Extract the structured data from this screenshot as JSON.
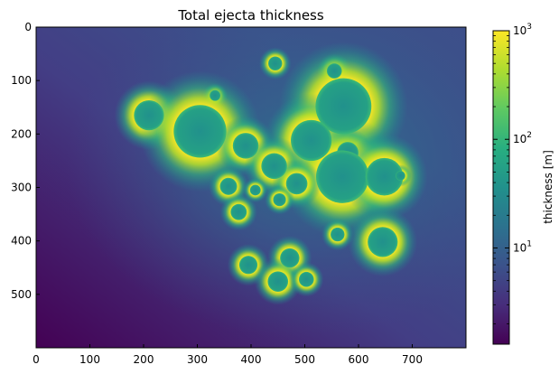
{
  "chart_data": {
    "type": "heatmap",
    "title": "Total ejecta thickness",
    "xlabel": "",
    "ylabel": "",
    "xlim": [
      0,
      800
    ],
    "ylim": [
      600,
      0
    ],
    "x_ticks": [
      0,
      100,
      200,
      300,
      400,
      500,
      600,
      700
    ],
    "y_ticks": [
      0,
      100,
      200,
      300,
      400,
      500
    ],
    "colormap": "viridis",
    "colorbar": {
      "label": "thickness [m]",
      "scale": "log",
      "range": [
        1.3,
        1000
      ],
      "ticks": [
        {
          "value": 10,
          "base": "10",
          "exp": "1"
        },
        {
          "value": 100,
          "base": "10",
          "exp": "2"
        },
        {
          "value": 1000,
          "base": "10",
          "exp": "3"
        }
      ]
    },
    "craters": [
      {
        "x": 445,
        "y": 68,
        "r": 13
      },
      {
        "x": 555,
        "y": 82,
        "r": 14
      },
      {
        "x": 333,
        "y": 128,
        "r": 10
      },
      {
        "x": 572,
        "y": 148,
        "r": 52
      },
      {
        "x": 210,
        "y": 165,
        "r": 28
      },
      {
        "x": 305,
        "y": 195,
        "r": 49
      },
      {
        "x": 512,
        "y": 212,
        "r": 38
      },
      {
        "x": 390,
        "y": 222,
        "r": 24
      },
      {
        "x": 580,
        "y": 235,
        "r": 20
      },
      {
        "x": 443,
        "y": 260,
        "r": 24
      },
      {
        "x": 570,
        "y": 280,
        "r": 49
      },
      {
        "x": 648,
        "y": 280,
        "r": 35
      },
      {
        "x": 678,
        "y": 278,
        "r": 9
      },
      {
        "x": 485,
        "y": 293,
        "r": 20
      },
      {
        "x": 358,
        "y": 298,
        "r": 16
      },
      {
        "x": 408,
        "y": 305,
        "r": 10
      },
      {
        "x": 453,
        "y": 323,
        "r": 12
      },
      {
        "x": 377,
        "y": 346,
        "r": 15
      },
      {
        "x": 561,
        "y": 388,
        "r": 13
      },
      {
        "x": 645,
        "y": 402,
        "r": 28
      },
      {
        "x": 472,
        "y": 432,
        "r": 18
      },
      {
        "x": 395,
        "y": 445,
        "r": 17
      },
      {
        "x": 450,
        "y": 476,
        "r": 19
      },
      {
        "x": 503,
        "y": 472,
        "r": 14
      }
    ]
  }
}
